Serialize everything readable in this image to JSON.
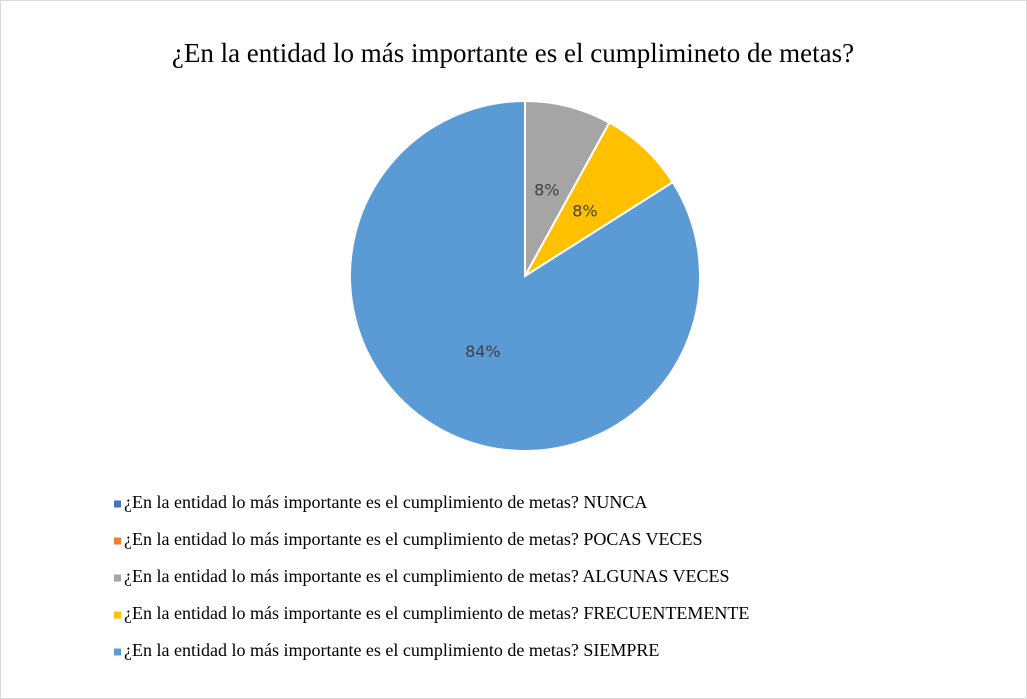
{
  "chart_data": {
    "type": "pie",
    "title": "¿En la entidad lo más importante es el cumplimineto de metas?",
    "categories": [
      "¿En la entidad lo más importante es el cumplimiento de metas? NUNCA",
      "¿En la entidad lo más importante es el cumplimiento de metas? POCAS VECES",
      "¿En la entidad lo más importante es el cumplimiento de metas? ALGUNAS VECES",
      "¿En la entidad lo más importante es el cumplimiento de metas? FRECUENTEMENTE",
      "¿En la entidad lo más importante es el cumplimiento de metas? SIEMPRE"
    ],
    "values": [
      0,
      0,
      8,
      8,
      84
    ],
    "value_labels": [
      null,
      null,
      "8%",
      "8%",
      "84%"
    ],
    "colors": [
      "#4472c4",
      "#ed7d31",
      "#a5a5a5",
      "#ffc000",
      "#5b9bd5"
    ],
    "legend": "bottom"
  }
}
